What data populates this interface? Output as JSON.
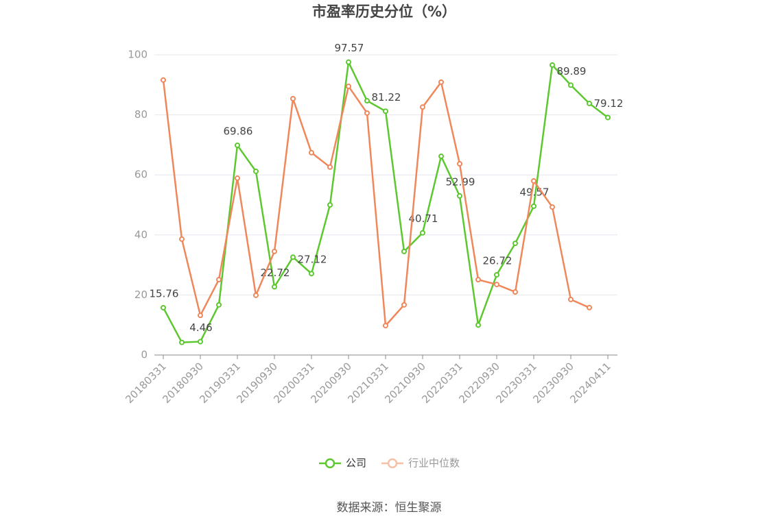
{
  "chart_data": {
    "type": "line",
    "title": "市盈率历史分位（%）",
    "categories": [
      "20180331",
      null,
      "20180930",
      null,
      "20190331",
      null,
      "20190930",
      null,
      "20200331",
      null,
      "20200930",
      null,
      "20210331",
      null,
      "20210930",
      null,
      "20220331",
      null,
      "20220930",
      null,
      "20230331",
      null,
      "20230930",
      null,
      "20240411"
    ],
    "series": [
      {
        "name": "公司",
        "color": "#5cc72e",
        "values": [
          15.76,
          4.2,
          4.46,
          16.7,
          69.86,
          61.2,
          22.72,
          32.6,
          27.12,
          50.0,
          97.57,
          84.7,
          81.22,
          34.5,
          40.71,
          66.2,
          52.99,
          10.0,
          26.72,
          37.2,
          49.57,
          96.6,
          89.89,
          83.8,
          79.12
        ],
        "value_labels": [
          "15.76",
          null,
          "4.46",
          null,
          "69.86",
          null,
          "22.72",
          null,
          "27.12",
          null,
          "97.57",
          null,
          "81.22",
          null,
          "40.71",
          null,
          "52.99",
          null,
          "26.72",
          null,
          "49.57",
          null,
          "89.89",
          null,
          "79.12"
        ]
      },
      {
        "name": "行业中位数",
        "color": "#f0875a",
        "values": [
          91.6,
          38.6,
          13.2,
          25.1,
          58.9,
          19.9,
          34.5,
          85.4,
          67.4,
          62.6,
          89.5,
          80.6,
          9.8,
          16.7,
          82.6,
          90.9,
          63.7,
          25.1,
          23.5,
          21.0,
          58.0,
          49.3,
          18.5,
          15.8,
          null
        ]
      }
    ],
    "ylim": [
      0,
      100
    ],
    "yticks": [
      0,
      20,
      40,
      60,
      80,
      100
    ],
    "grid": true,
    "source": "数据来源：恒生聚源"
  }
}
